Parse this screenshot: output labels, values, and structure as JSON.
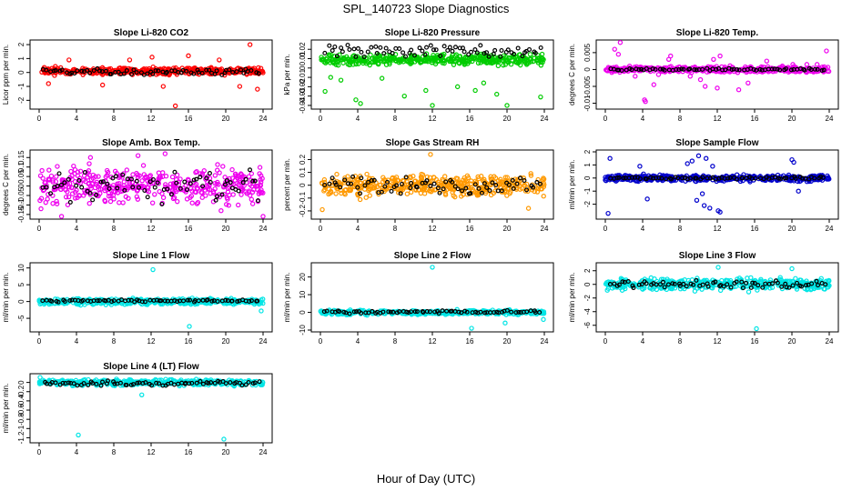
{
  "figure": {
    "title": "SPL_140723  Slope Diagnostics",
    "xlabel": "Hour of Day (UTC)"
  },
  "chart_data": [
    {
      "type": "scatter",
      "title": "Slope Li-820 CO2",
      "ylabel": "Licor ppm per min.",
      "color": "#ff0000",
      "xlim": [
        0,
        24
      ],
      "xticks": [
        0,
        4,
        8,
        12,
        16,
        20,
        24
      ],
      "ylim": [
        -2.5,
        2.2
      ],
      "yticks": [
        -2,
        -1,
        0,
        1,
        2
      ],
      "band": {
        "center": 0.1,
        "spread": 0.35
      },
      "scattered": [
        [
          1.0,
          -0.8
        ],
        [
          3.2,
          0.9
        ],
        [
          6.8,
          -0.9
        ],
        [
          9.7,
          0.9
        ],
        [
          13.3,
          -1.0
        ],
        [
          14.6,
          -2.4
        ],
        [
          16.0,
          1.2
        ],
        [
          19.3,
          0.9
        ],
        [
          21.5,
          -1.0
        ],
        [
          22.6,
          2.0
        ],
        [
          23.4,
          -1.2
        ],
        [
          12.1,
          1.1
        ]
      ],
      "black": {
        "center": 0.05,
        "spread": 0.25
      },
      "seed": 11
    },
    {
      "type": "scatter",
      "title": "Slope Li-820 Pressure",
      "ylabel": "kPa per min.",
      "color": "#00cc00",
      "xlim": [
        0,
        24
      ],
      "xticks": [
        0,
        4,
        8,
        12,
        16,
        20,
        24
      ],
      "ylim": [
        -0.042,
        0.028
      ],
      "yticks": [
        -0.04,
        -0.03,
        -0.02,
        -0.01,
        0,
        0.01,
        0.02
      ],
      "band": {
        "center": 0.009,
        "spread": 0.008
      },
      "scattered": [
        [
          0.5,
          -0.025
        ],
        [
          2.2,
          -0.013
        ],
        [
          3.8,
          -0.034
        ],
        [
          4.3,
          -0.038
        ],
        [
          6.6,
          -0.011
        ],
        [
          9.0,
          -0.03
        ],
        [
          11.3,
          -0.024
        ],
        [
          12.0,
          -0.04
        ],
        [
          14.7,
          -0.02
        ],
        [
          16.6,
          -0.024
        ],
        [
          17.5,
          -0.016
        ],
        [
          18.9,
          -0.028
        ],
        [
          20.0,
          -0.04
        ],
        [
          23.6,
          -0.031
        ],
        [
          1.1,
          -0.01
        ]
      ],
      "black": {
        "center": 0.018,
        "spread": 0.009
      },
      "seed": 23
    },
    {
      "type": "scatter",
      "title": "Slope Li-820 Temp.",
      "ylabel": "degrees C per min.",
      "color": "#ee00ee",
      "xlim": [
        0,
        24
      ],
      "xticks": [
        0,
        4,
        8,
        12,
        16,
        20,
        24
      ],
      "ylim": [
        -0.0112,
        0.0082
      ],
      "yticks": [
        -0.01,
        -0.005,
        0,
        0.005
      ],
      "band": {
        "center": 0.0,
        "spread": 0.0012
      },
      "scattered": [
        [
          1.0,
          0.006
        ],
        [
          1.4,
          0.0045
        ],
        [
          1.6,
          0.008
        ],
        [
          2.6,
          0.001
        ],
        [
          3.2,
          -0.002
        ],
        [
          4.2,
          -0.009
        ],
        [
          4.3,
          -0.0095
        ],
        [
          5.2,
          -0.0045
        ],
        [
          5.7,
          -0.0015
        ],
        [
          6.8,
          0.003
        ],
        [
          7.0,
          0.004
        ],
        [
          9.1,
          -0.002
        ],
        [
          10.2,
          -0.003
        ],
        [
          10.7,
          -0.005
        ],
        [
          11.6,
          0.003
        ],
        [
          12.0,
          -0.0055
        ],
        [
          12.3,
          0.004
        ],
        [
          14.3,
          -0.006
        ],
        [
          15.3,
          -0.004
        ],
        [
          16.8,
          -0.0005
        ],
        [
          17.3,
          0.0025
        ],
        [
          20.1,
          0.0015
        ],
        [
          21.6,
          0.0015
        ],
        [
          22.7,
          0.0015
        ],
        [
          23.7,
          0.0055
        ]
      ],
      "black": {
        "center": 0.0,
        "spread": 0.0004
      },
      "seed": 37
    },
    {
      "type": "scatter",
      "title": "Slope Amb. Box Temp.",
      "ylabel": "degrees C per min.",
      "color": "#ee00ee",
      "xlim": [
        0,
        24
      ],
      "xticks": [
        0,
        4,
        8,
        12,
        16,
        20,
        24
      ],
      "ylim": [
        -0.165,
        0.18
      ],
      "yticks": [
        -0.15,
        -0.1,
        -0.05,
        0,
        0.05,
        0.1,
        0.15
      ],
      "band": {
        "center": 0.0,
        "spread": 0.13
      },
      "scattered": [
        [
          0.2,
          -0.12
        ],
        [
          2.4,
          -0.16
        ],
        [
          5.5,
          0.15
        ],
        [
          10.6,
          0.16
        ],
        [
          13.5,
          0.17
        ],
        [
          19.5,
          -0.13
        ],
        [
          24.0,
          -0.16
        ]
      ],
      "black": {
        "center": 0.0,
        "spread": 0.1
      },
      "seed": 41
    },
    {
      "type": "scatter",
      "title": "Slope Gas Stream RH",
      "ylabel": "percent per min.",
      "color": "#ff9900",
      "xlim": [
        0,
        24
      ],
      "xticks": [
        0,
        4,
        8,
        12,
        16,
        20,
        24
      ],
      "ylim": [
        -0.25,
        0.26
      ],
      "yticks": [
        -0.2,
        -0.1,
        0,
        0.1,
        0.2
      ],
      "band": {
        "center": 0.0,
        "spread": 0.12
      },
      "scattered": [
        [
          0.2,
          -0.19
        ],
        [
          11.8,
          0.24
        ],
        [
          22.3,
          -0.18
        ]
      ],
      "black": {
        "center": 0.0,
        "spread": 0.09
      },
      "seed": 53
    },
    {
      "type": "scatter",
      "title": "Slope Sample Flow",
      "ylabel": "ml/min per min.",
      "color": "#0000cc",
      "xlim": [
        0,
        24
      ],
      "xticks": [
        0,
        4,
        8,
        12,
        16,
        20,
        24
      ],
      "ylim": [
        -3.0,
        2.0
      ],
      "yticks": [
        -2,
        -1,
        0,
        1,
        2
      ],
      "band": {
        "center": 0.0,
        "spread": 0.35
      },
      "scattered": [
        [
          0.3,
          -2.7
        ],
        [
          0.5,
          1.5
        ],
        [
          3.7,
          0.9
        ],
        [
          4.5,
          -1.6
        ],
        [
          8.8,
          1.1
        ],
        [
          9.3,
          1.3
        ],
        [
          9.8,
          -1.7
        ],
        [
          10.0,
          1.7
        ],
        [
          10.4,
          -1.2
        ],
        [
          10.8,
          1.5
        ],
        [
          11.2,
          -2.3
        ],
        [
          11.5,
          0.9
        ],
        [
          12.1,
          -2.5
        ],
        [
          12.3,
          -2.6
        ],
        [
          10.6,
          -2.1
        ],
        [
          20.0,
          1.4
        ],
        [
          20.2,
          1.2
        ],
        [
          20.7,
          -1.0
        ]
      ],
      "black": {
        "center": 0.0,
        "spread": 0.12
      },
      "seed": 67
    },
    {
      "type": "scatter",
      "title": "Slope Line 1 Flow",
      "ylabel": "ml/min per min.",
      "color": "#00e5e5",
      "xlim": [
        0,
        24
      ],
      "xticks": [
        0,
        4,
        8,
        12,
        16,
        20,
        24
      ],
      "ylim": [
        -8.5,
        11
      ],
      "yticks": [
        -5,
        0,
        5,
        10
      ],
      "band": {
        "center": 0.0,
        "spread": 1.2
      },
      "scattered": [
        [
          12.2,
          9.5
        ],
        [
          16.1,
          -7.4
        ],
        [
          23.8,
          -2.8
        ]
      ],
      "black": {
        "center": 0.2,
        "spread": 0.4
      },
      "seed": 71
    },
    {
      "type": "scatter",
      "title": "Slope Line 2 Flow",
      "ylabel": "ml/min per min.",
      "color": "#00e5e5",
      "xlim": [
        0,
        24
      ],
      "xticks": [
        0,
        4,
        8,
        12,
        16,
        20,
        24
      ],
      "ylim": [
        -10,
        27
      ],
      "yticks": [
        -10,
        0,
        10,
        20
      ],
      "band": {
        "center": 0.0,
        "spread": 1.8
      },
      "scattered": [
        [
          12.0,
          25.5
        ],
        [
          16.2,
          -9.0
        ],
        [
          19.8,
          -6.0
        ],
        [
          23.9,
          -4.0
        ]
      ],
      "black": {
        "center": 0.2,
        "spread": 1.0
      },
      "seed": 83
    },
    {
      "type": "scatter",
      "title": "Slope Line 3 Flow",
      "ylabel": "ml/min per min.",
      "color": "#00e5e5",
      "xlim": [
        0,
        24
      ],
      "xticks": [
        0,
        4,
        8,
        12,
        16,
        20,
        24
      ],
      "ylim": [
        -6.7,
        2.9
      ],
      "yticks": [
        -6,
        -4,
        -2,
        0,
        2
      ],
      "band": {
        "center": 0.0,
        "spread": 1.2
      },
      "scattered": [
        [
          12.1,
          2.5
        ],
        [
          16.2,
          -6.5
        ],
        [
          20.0,
          2.3
        ]
      ],
      "black": {
        "center": 0.0,
        "spread": 0.7
      },
      "seed": 97
    },
    {
      "type": "scatter",
      "title": "Slope Line 4 (LT) Flow",
      "ylabel": "ml/min per min.",
      "color": "#00e5e5",
      "xlim": [
        0,
        24
      ],
      "xticks": [
        0,
        4,
        8,
        12,
        16,
        20,
        24
      ],
      "ylim": [
        -1.27,
        0.15
      ],
      "yticks": [
        -1.2,
        -1.0,
        -0.8,
        -0.6,
        -0.4,
        -0.2,
        0.0
      ],
      "band": {
        "center": 0.0,
        "spread": 0.09
      },
      "scattered": [
        [
          4.2,
          -1.14
        ],
        [
          19.8,
          -1.23
        ],
        [
          0.1,
          0.11
        ],
        [
          11.0,
          -0.27
        ]
      ],
      "black": {
        "center": -0.02,
        "spread": 0.06
      },
      "seed": 101
    }
  ]
}
